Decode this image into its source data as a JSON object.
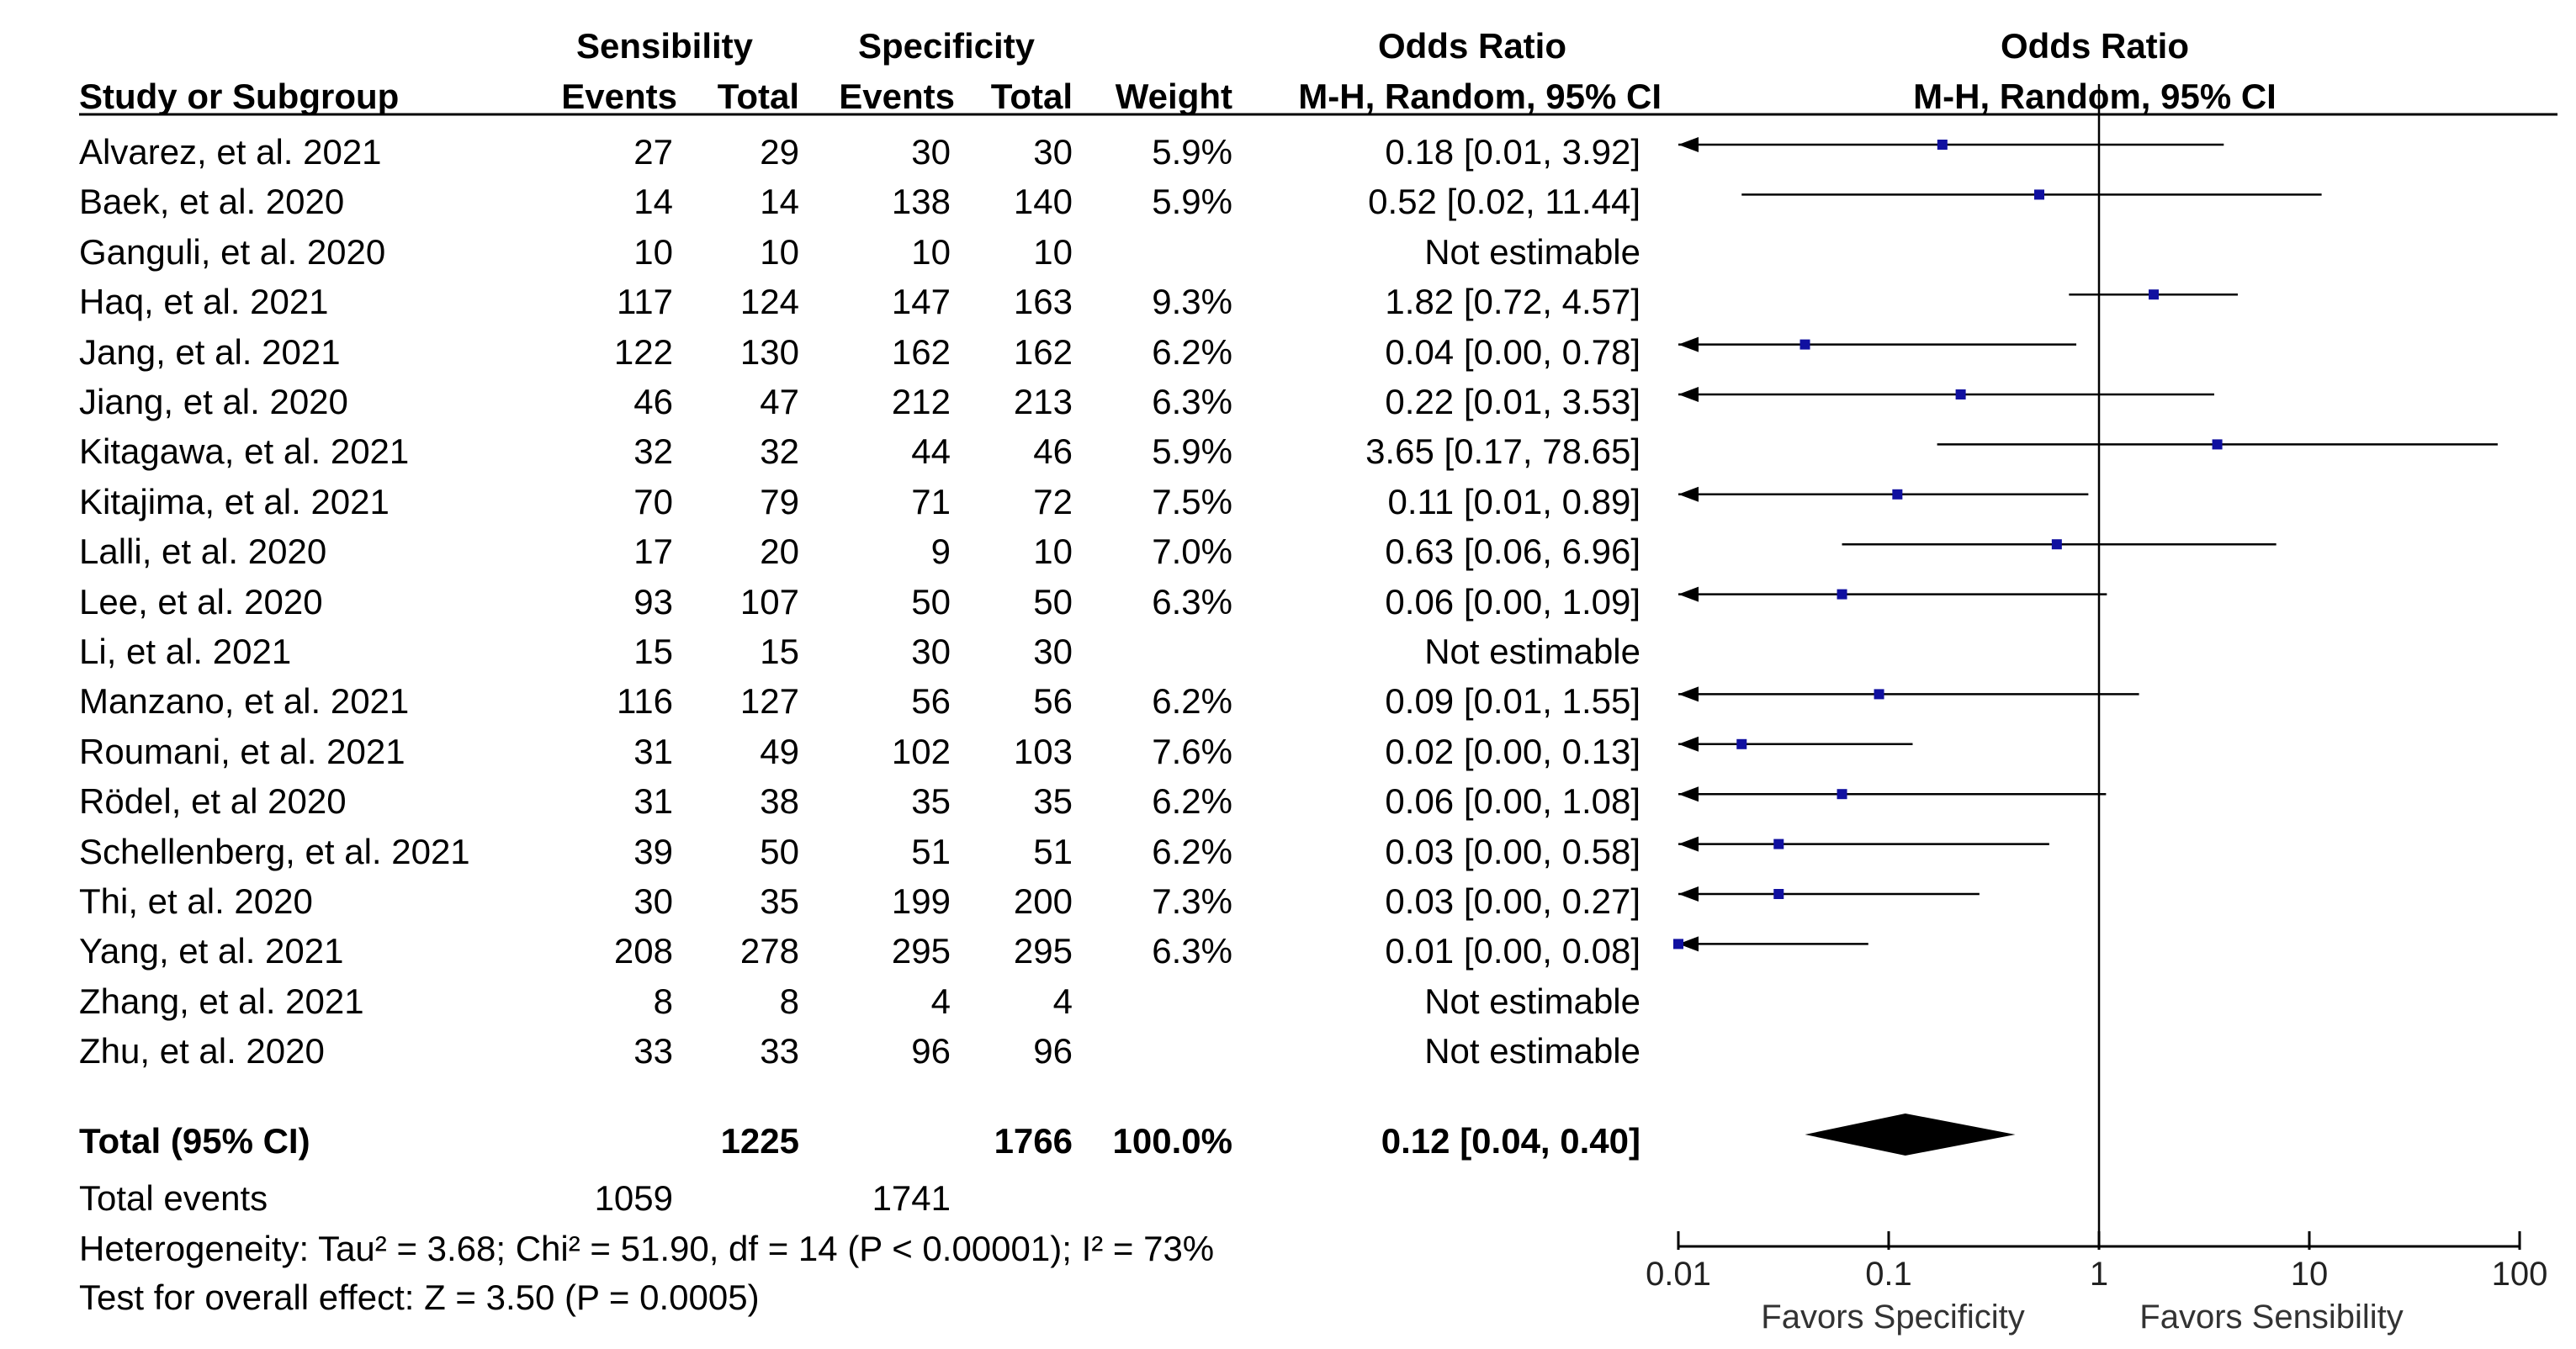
{
  "headers": {
    "group1": "Sensibility",
    "group2": "Specificity",
    "study": "Study or Subgroup",
    "events": "Events",
    "total": "Total",
    "weight": "Weight",
    "or_title": "Odds Ratio",
    "or_method": "M-H, Random, 95% CI",
    "plot_title": "Odds Ratio",
    "plot_method": "M-H, Random, 95% CI"
  },
  "rows": [
    {
      "study": "Alvarez, et al. 2021",
      "e1": "27",
      "t1": "29",
      "e2": "30",
      "t2": "30",
      "weight": "5.9%",
      "ci": "0.18 [0.01, 3.92]"
    },
    {
      "study": "Baek, et al. 2020",
      "e1": "14",
      "t1": "14",
      "e2": "138",
      "t2": "140",
      "weight": "5.9%",
      "ci": "0.52 [0.02, 11.44]"
    },
    {
      "study": "Ganguli, et al. 2020",
      "e1": "10",
      "t1": "10",
      "e2": "10",
      "t2": "10",
      "weight": "",
      "ci": "Not estimable"
    },
    {
      "study": "Haq, et al. 2021",
      "e1": "117",
      "t1": "124",
      "e2": "147",
      "t2": "163",
      "weight": "9.3%",
      "ci": "1.82 [0.72, 4.57]"
    },
    {
      "study": "Jang, et al. 2021",
      "e1": "122",
      "t1": "130",
      "e2": "162",
      "t2": "162",
      "weight": "6.2%",
      "ci": "0.04 [0.00, 0.78]"
    },
    {
      "study": "Jiang, et al. 2020",
      "e1": "46",
      "t1": "47",
      "e2": "212",
      "t2": "213",
      "weight": "6.3%",
      "ci": "0.22 [0.01, 3.53]"
    },
    {
      "study": "Kitagawa, et al. 2021",
      "e1": "32",
      "t1": "32",
      "e2": "44",
      "t2": "46",
      "weight": "5.9%",
      "ci": "3.65 [0.17, 78.65]"
    },
    {
      "study": "Kitajima, et al. 2021",
      "e1": "70",
      "t1": "79",
      "e2": "71",
      "t2": "72",
      "weight": "7.5%",
      "ci": "0.11 [0.01, 0.89]"
    },
    {
      "study": "Lalli, et al. 2020",
      "e1": "17",
      "t1": "20",
      "e2": "9",
      "t2": "10",
      "weight": "7.0%",
      "ci": "0.63 [0.06, 6.96]"
    },
    {
      "study": "Lee, et al. 2020",
      "e1": "93",
      "t1": "107",
      "e2": "50",
      "t2": "50",
      "weight": "6.3%",
      "ci": "0.06 [0.00, 1.09]"
    },
    {
      "study": "Li, et al. 2021",
      "e1": "15",
      "t1": "15",
      "e2": "30",
      "t2": "30",
      "weight": "",
      "ci": "Not estimable"
    },
    {
      "study": "Manzano, et al. 2021",
      "e1": "116",
      "t1": "127",
      "e2": "56",
      "t2": "56",
      "weight": "6.2%",
      "ci": "0.09 [0.01, 1.55]"
    },
    {
      "study": "Roumani, et al. 2021",
      "e1": "31",
      "t1": "49",
      "e2": "102",
      "t2": "103",
      "weight": "7.6%",
      "ci": "0.02 [0.00, 0.13]"
    },
    {
      "study": "Rödel, et al 2020",
      "e1": "31",
      "t1": "38",
      "e2": "35",
      "t2": "35",
      "weight": "6.2%",
      "ci": "0.06 [0.00, 1.08]"
    },
    {
      "study": "Schellenberg, et al. 2021",
      "e1": "39",
      "t1": "50",
      "e2": "51",
      "t2": "51",
      "weight": "6.2%",
      "ci": "0.03 [0.00, 0.58]"
    },
    {
      "study": "Thi, et al. 2020",
      "e1": "30",
      "t1": "35",
      "e2": "199",
      "t2": "200",
      "weight": "7.3%",
      "ci": "0.03 [0.00, 0.27]"
    },
    {
      "study": "Yang, et al. 2021",
      "e1": "208",
      "t1": "278",
      "e2": "295",
      "t2": "295",
      "weight": "6.3%",
      "ci": "0.01 [0.00, 0.08]"
    },
    {
      "study": "Zhang, et al. 2021",
      "e1": "8",
      "t1": "8",
      "e2": "4",
      "t2": "4",
      "weight": "",
      "ci": "Not estimable"
    },
    {
      "study": "Zhu, et al. 2020",
      "e1": "33",
      "t1": "33",
      "e2": "96",
      "t2": "96",
      "weight": "",
      "ci": "Not estimable"
    }
  ],
  "total": {
    "label": "Total (95% CI)",
    "t1": "1225",
    "t2": "1766",
    "weight": "100.0%",
    "ci": "0.12 [0.04, 0.40]"
  },
  "total_events": {
    "label": "Total events",
    "e1": "1059",
    "e2": "1741"
  },
  "heterogeneity": "Heterogeneity: Tau² = 3.68; Chi² = 51.90, df = 14 (P < 0.00001); I² = 73%",
  "overall_effect": "Test for overall effect: Z = 3.50 (P = 0.0005)",
  "axis": {
    "ticks": [
      0.01,
      0.1,
      1,
      10,
      100
    ],
    "tick_labels": [
      "0.01",
      "0.1",
      "1",
      "10",
      "100"
    ],
    "favors_left": "Favors Specificity",
    "favors_right": "Favors Sensibility"
  },
  "colors": {
    "marker": "#1010a0",
    "line": "#000000",
    "diamond": "#000000"
  },
  "chart_data": {
    "type": "forest",
    "scale": "log",
    "xlim": [
      0.01,
      100
    ],
    "reference_line": 1,
    "points": [
      {
        "study": "Alvarez, et al. 2021",
        "or": 0.18,
        "lo": 0.01,
        "hi": 3.92
      },
      {
        "study": "Baek, et al. 2020",
        "or": 0.52,
        "lo": 0.02,
        "hi": 11.44
      },
      {
        "study": "Ganguli, et al. 2020",
        "or": null,
        "lo": null,
        "hi": null
      },
      {
        "study": "Haq, et al. 2021",
        "or": 1.82,
        "lo": 0.72,
        "hi": 4.57
      },
      {
        "study": "Jang, et al. 2021",
        "or": 0.04,
        "lo": 0.0,
        "hi": 0.78
      },
      {
        "study": "Jiang, et al. 2020",
        "or": 0.22,
        "lo": 0.01,
        "hi": 3.53
      },
      {
        "study": "Kitagawa, et al. 2021",
        "or": 3.65,
        "lo": 0.17,
        "hi": 78.65
      },
      {
        "study": "Kitajima, et al. 2021",
        "or": 0.11,
        "lo": 0.01,
        "hi": 0.89
      },
      {
        "study": "Lalli, et al. 2020",
        "or": 0.63,
        "lo": 0.06,
        "hi": 6.96
      },
      {
        "study": "Lee, et al. 2020",
        "or": 0.06,
        "lo": 0.0,
        "hi": 1.09
      },
      {
        "study": "Li, et al. 2021",
        "or": null,
        "lo": null,
        "hi": null
      },
      {
        "study": "Manzano, et al. 2021",
        "or": 0.09,
        "lo": 0.01,
        "hi": 1.55
      },
      {
        "study": "Roumani, et al. 2021",
        "or": 0.02,
        "lo": 0.0,
        "hi": 0.13
      },
      {
        "study": "Rödel, et al 2020",
        "or": 0.06,
        "lo": 0.0,
        "hi": 1.08
      },
      {
        "study": "Schellenberg, et al. 2021",
        "or": 0.03,
        "lo": 0.0,
        "hi": 0.58
      },
      {
        "study": "Thi, et al. 2020",
        "or": 0.03,
        "lo": 0.0,
        "hi": 0.27
      },
      {
        "study": "Yang, et al. 2021",
        "or": 0.01,
        "lo": 0.0,
        "hi": 0.08
      },
      {
        "study": "Zhang, et al. 2021",
        "or": null,
        "lo": null,
        "hi": null
      },
      {
        "study": "Zhu, et al. 2020",
        "or": null,
        "lo": null,
        "hi": null
      }
    ],
    "pooled": {
      "or": 0.12,
      "lo": 0.04,
      "hi": 0.4
    }
  }
}
